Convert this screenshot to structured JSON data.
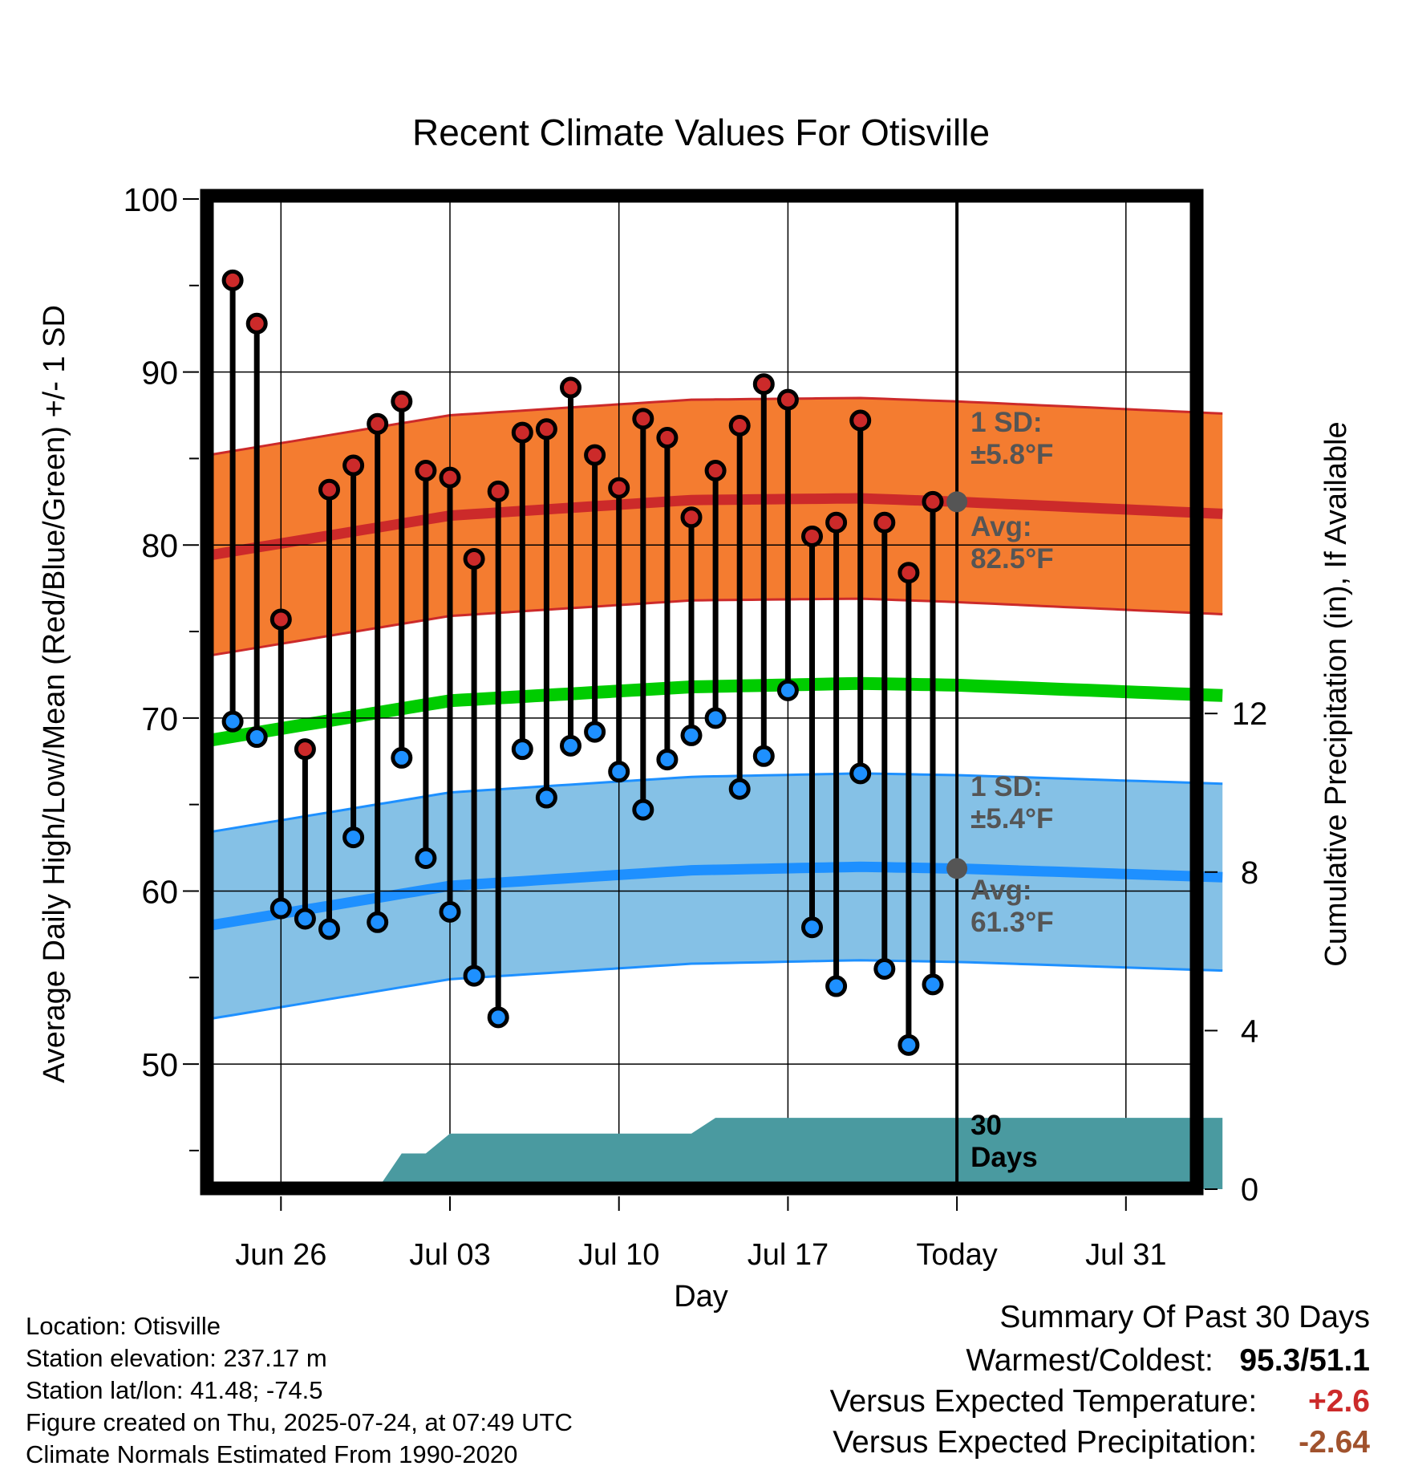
{
  "chart_data": {
    "type": "line",
    "title": "Recent Climate Values For Otisville",
    "xlabel": "Day",
    "ylabel": "Average Daily High/Low/Mean (Red/Blue/Green) +/- 1 SD",
    "y2label": "Cumulative Precipitation (in), If Available",
    "ylim": [
      43,
      100
    ],
    "y2lim": [
      0,
      25
    ],
    "y_ticks": [
      "100",
      "90",
      "80",
      "70",
      "60",
      "50"
    ],
    "y2_ticks": [
      "0",
      "4",
      "8",
      "12"
    ],
    "x_ticks": [
      "Jun 26",
      "Jul 03",
      "Jul 10",
      "Jul 17",
      "Today",
      "Jul 31"
    ],
    "x_days": [
      "2025-06-23",
      "2025-08-04"
    ],
    "today": "2025-07-24",
    "grid": true,
    "days": [
      "2025-06-24",
      "2025-06-25",
      "2025-06-26",
      "2025-06-27",
      "2025-06-28",
      "2025-06-29",
      "2025-06-30",
      "2025-07-01",
      "2025-07-02",
      "2025-07-03",
      "2025-07-04",
      "2025-07-05",
      "2025-07-06",
      "2025-07-07",
      "2025-07-08",
      "2025-07-09",
      "2025-07-10",
      "2025-07-11",
      "2025-07-12",
      "2025-07-13",
      "2025-07-14",
      "2025-07-15",
      "2025-07-16",
      "2025-07-17",
      "2025-07-18",
      "2025-07-19",
      "2025-07-20",
      "2025-07-21",
      "2025-07-22",
      "2025-07-23"
    ],
    "series": [
      {
        "name": "High",
        "color": "#cc2a2a",
        "values": [
          95.3,
          92.8,
          75.7,
          68.2,
          83.2,
          84.6,
          87.0,
          88.3,
          84.3,
          83.9,
          79.2,
          83.1,
          86.5,
          86.7,
          89.1,
          85.2,
          83.3,
          87.3,
          86.2,
          81.6,
          84.3,
          86.9,
          89.3,
          88.4,
          80.5,
          81.3,
          87.2,
          81.3,
          78.4,
          82.5
        ]
      },
      {
        "name": "Low",
        "color": "#1e90ff",
        "values": [
          69.8,
          68.9,
          59.0,
          58.4,
          57.8,
          63.1,
          58.2,
          67.7,
          61.9,
          58.8,
          55.1,
          52.7,
          68.2,
          65.4,
          68.4,
          69.2,
          66.9,
          64.7,
          67.6,
          69.0,
          70.0,
          65.9,
          67.8,
          71.6,
          57.9,
          54.5,
          66.8,
          55.5,
          51.1,
          54.6
        ]
      }
    ],
    "normals": {
      "days": [
        "2025-06-23",
        "2025-07-03",
        "2025-07-13",
        "2025-07-20",
        "2025-07-24",
        "2025-08-04"
      ],
      "high_avg": [
        79.4,
        81.7,
        82.6,
        82.7,
        82.5,
        81.8
      ],
      "high_sd": 5.8,
      "low_avg": [
        58.0,
        60.3,
        61.2,
        61.4,
        61.3,
        60.8
      ],
      "low_sd": 5.4,
      "mean_avg": [
        68.7,
        71.0,
        71.8,
        72.0,
        71.9,
        71.3
      ]
    },
    "precip": {
      "days": [
        "2025-06-23",
        "2025-06-30",
        "2025-07-01",
        "2025-07-02",
        "2025-07-03",
        "2025-07-13",
        "2025-07-14",
        "2025-08-04"
      ],
      "values": [
        0,
        0,
        0.9,
        0.9,
        1.4,
        1.4,
        1.8,
        1.8
      ],
      "color": "#4a9aa0"
    },
    "annotations": {
      "high_sd": [
        "1 SD:",
        "±5.8°F"
      ],
      "high_avg": [
        "Avg:",
        "82.5°F"
      ],
      "low_sd": [
        "1 SD:",
        "±5.4°F"
      ],
      "low_avg": [
        "Avg:",
        "61.3°F"
      ],
      "window": [
        "30",
        "Days"
      ]
    },
    "colors": {
      "high_band": "#f47c30",
      "high_line": "#cc2a2a",
      "low_band": "#85c1e6",
      "low_line": "#1e90ff",
      "mean_line": "#00cc00",
      "annotation": "#555555"
    }
  },
  "footer": {
    "location": "Location: Otisville",
    "elevation": "Station elevation: 237.17 m",
    "latlon": "Station lat/lon: 41.48; -74.5",
    "created": "Figure created on Thu, 2025-07-24, at 07:49 UTC",
    "normals": "Climate Normals Estimated From 1990-2020"
  },
  "summary": {
    "title": "Summary Of Past 30 Days",
    "warm_cold_label": "Warmest/Coldest:",
    "warm_cold_value": "95.3/51.1",
    "temp_label": "Versus Expected Temperature:",
    "temp_value": "+2.6",
    "temp_color": "#cc2a2a",
    "precip_label": "Versus Expected Precipitation:",
    "precip_value": "-2.64",
    "precip_color": "#a0522d"
  }
}
